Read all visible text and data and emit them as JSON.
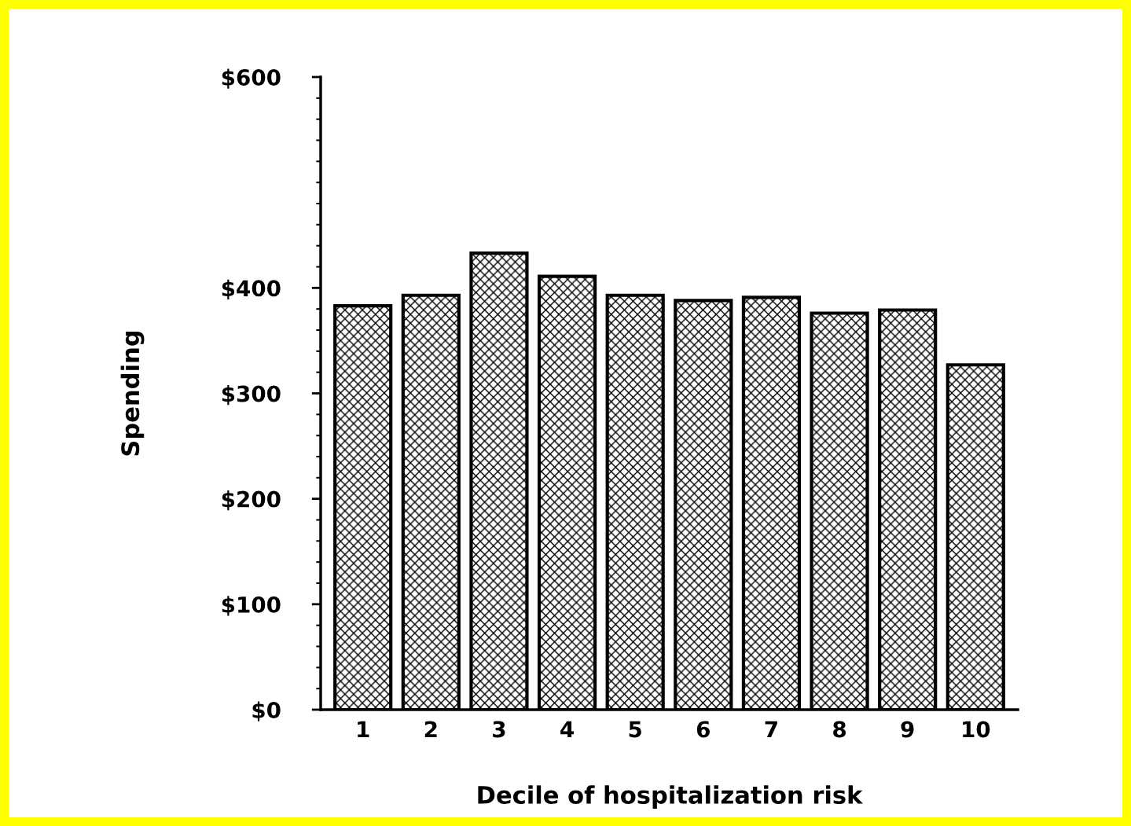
{
  "chart_data": {
    "type": "bar",
    "xlabel": "Decile of hospitalization risk",
    "ylabel": "Spending",
    "categories": [
      "1",
      "2",
      "3",
      "4",
      "5",
      "6",
      "7",
      "8",
      "9",
      "10"
    ],
    "values": [
      383,
      393,
      433,
      411,
      393,
      388,
      391,
      376,
      379,
      327
    ],
    "color": "#000000",
    "ylim": [
      0,
      600
    ],
    "yticks": [
      {
        "value": 0,
        "label": "$0"
      },
      {
        "value": 100,
        "label": "$100"
      },
      {
        "value": 200,
        "label": "$200"
      },
      {
        "value": 300,
        "label": "$300"
      },
      {
        "value": 400,
        "label": "$400"
      },
      {
        "value": 600,
        "label": "$600"
      }
    ],
    "grid": false,
    "legend": false
  }
}
